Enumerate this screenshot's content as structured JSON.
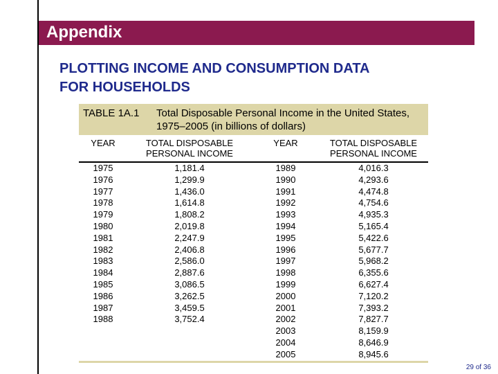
{
  "banner": {
    "title": "Appendix"
  },
  "heading": {
    "line1": "PLOTTING INCOME AND CONSUMPTION DATA",
    "line2": "FOR HOUSEHOLDS"
  },
  "table": {
    "label": "TABLE 1A.1",
    "title": "Total Disposable Personal Income in the United States, 1975–2005 (in billions of dollars)",
    "headers": {
      "year": "YEAR",
      "income_line1": "TOTAL DISPOSABLE",
      "income_line2": "PERSONAL INCOME"
    },
    "left": {
      "years": [
        "1975",
        "1976",
        "1977",
        "1978",
        "1979",
        "1980",
        "1981",
        "1982",
        "1983",
        "1984",
        "1985",
        "1986",
        "1987",
        "1988"
      ],
      "incomes": [
        "1,181.4",
        "1,299.9",
        "1,436.0",
        "1,614.8",
        "1,808.2",
        "2,019.8",
        "2,247.9",
        "2,406.8",
        "2,586.0",
        "2,887.6",
        "3,086.5",
        "3,262.5",
        "3,459.5",
        "3,752.4"
      ]
    },
    "right": {
      "years": [
        "1989",
        "1990",
        "1991",
        "1992",
        "1993",
        "1994",
        "1995",
        "1996",
        "1997",
        "1998",
        "1999",
        "2000",
        "2001",
        "2002",
        "2003",
        "2004",
        "2005"
      ],
      "incomes": [
        "4,016.3",
        "4,293.6",
        "4,474.8",
        "4,754.6",
        "4,935.3",
        "5,165.4",
        "5,422.6",
        "5,677.7",
        "5,968.2",
        "6,355.6",
        "6,627.4",
        "7,120.2",
        "7,393.2",
        "7,827.7",
        "8,159.9",
        "8,646.9",
        "8,945.6"
      ]
    }
  },
  "footer": {
    "page": "29 of 36"
  },
  "colors": {
    "banner": "#8b1a4f",
    "heading": "#1f2a8c",
    "caption_bg": "#ddd6a8"
  }
}
